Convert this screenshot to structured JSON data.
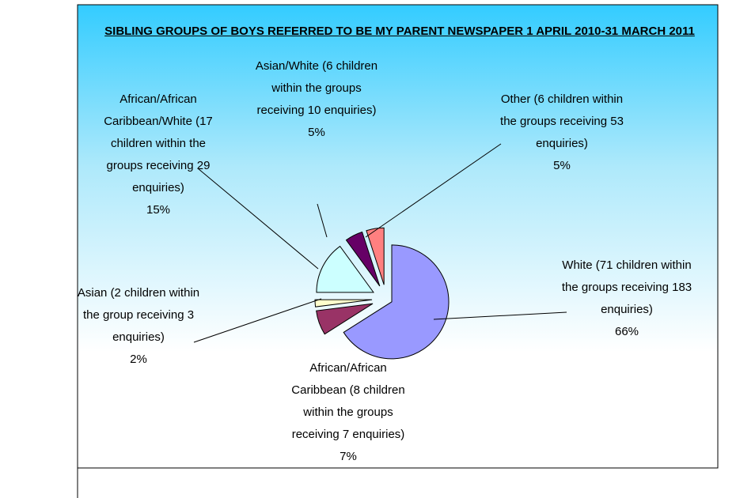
{
  "chart_data": {
    "type": "pie",
    "title": "SIBLING GROUPS OF BOYS REFERRED TO BE MY PARENT NEWSPAPER 1 APRIL 2010-31 MARCH 2011",
    "categories": [
      "White (71 children within the groups receiving 183 enquiries)",
      "African/African Caribbean (8 children within the groups receiving 7 enquiries)",
      "Asian (2 children within the group receiving 3 enquiries)",
      "African/African Caribbean/White (17 children within the groups receiving 29 enquiries)",
      "Asian/White (6 children within the groups receiving 10 enquiries)",
      "Other (6 children within the groups receiving 53 enquiries)"
    ],
    "values": [
      66,
      7,
      2,
      15,
      5,
      5
    ],
    "value_labels": [
      "66%",
      "7%",
      "2%",
      "15%",
      "5%",
      "5%"
    ],
    "colors": [
      "#9999ff",
      "#993366",
      "#ffffcc",
      "#ccffff",
      "#660066",
      "#ff8080"
    ]
  }
}
